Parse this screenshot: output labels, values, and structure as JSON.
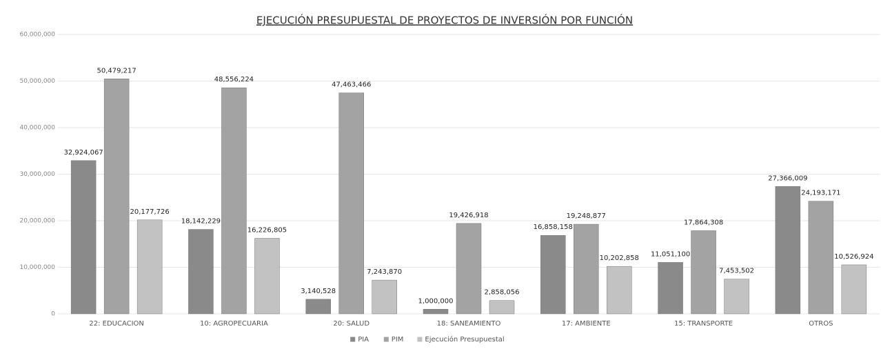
{
  "chart_data": {
    "type": "bar",
    "title": "EJECUCIÓN PRESUPUESTAL DE PROYECTOS DE INVERSIÓN POR FUNCIÓN",
    "categories": [
      "22: EDUCACION",
      "10: AGROPECUARIA",
      "20: SALUD",
      "18: SANEAMIENTO",
      "17: AMBIENTE",
      "15: TRANSPORTE",
      "OTROS"
    ],
    "series": [
      {
        "name": "PIA",
        "color": "#8a8a8a",
        "values": [
          32924067,
          18142229,
          3140528,
          1000000,
          16858158,
          11051100,
          27366009
        ],
        "value_labels": [
          "32,924,067",
          "18,142,229",
          "3,140,528",
          "1,000,000",
          "16,858,158",
          "11,051,100",
          "27,366,009"
        ]
      },
      {
        "name": "PIM",
        "color": "#a3a3a3",
        "values": [
          50479217,
          48556224,
          47463466,
          19426918,
          19248877,
          17864308,
          24193171
        ],
        "value_labels": [
          "50,479,217",
          "48,556,224",
          "47,463,466",
          "19,426,918",
          "19,248,877",
          "17,864,308",
          "24,193,171"
        ]
      },
      {
        "name": "Ejecución Presupuestal",
        "color": "#c2c2c2",
        "values": [
          20177726,
          16226805,
          7243870,
          2858056,
          10202858,
          7453502,
          10526924
        ],
        "value_labels": [
          "20,177,726",
          "16,226,805",
          "7,243,870",
          "2,858,056",
          "10,202,858",
          "7,453,502",
          "10,526,924"
        ]
      }
    ],
    "ylim": [
      0,
      60000000
    ],
    "yticks": [
      0,
      {
        "value": 10000000,
        "label": "10,000,000"
      },
      {
        "value": 20000000,
        "label": "20,000,000"
      },
      {
        "value": 30000000,
        "label": "30,000,000"
      },
      {
        "value": 40000000,
        "label": "40,000,000"
      },
      {
        "value": 50000000,
        "label": "50,000,000"
      },
      {
        "value": 60000000,
        "label": "60,000,000"
      }
    ],
    "grid": true,
    "legend": "bottom"
  }
}
